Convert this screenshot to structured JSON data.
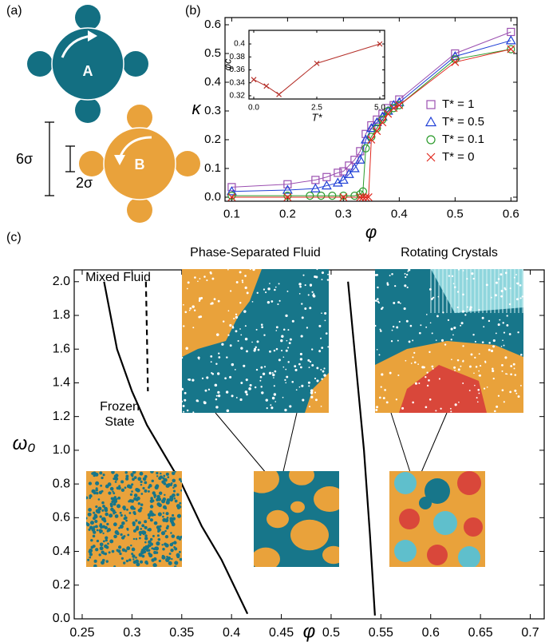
{
  "panel_labels": [
    "(a)",
    "(b)",
    "(c)"
  ],
  "diagram": {
    "particles": [
      "A",
      "B"
    ],
    "scale_bars": [
      "6σ",
      "2σ"
    ]
  },
  "chart_data": [
    {
      "type": "line",
      "xlabel": "φ",
      "ylabel": "κ",
      "xlim": [
        0.088,
        0.611
      ],
      "ylim": [
        -0.014,
        0.625
      ],
      "xticks": [
        0.1,
        0.2,
        0.3,
        0.4,
        0.5,
        0.6
      ],
      "yticks": [
        {
          "value": 0,
          "label": "0.0"
        },
        0.1,
        0.2,
        0.3,
        0.4,
        0.5,
        0.6
      ],
      "legend": "right",
      "series": [
        {
          "name": "T* = 1",
          "color": "#9b4fb0",
          "marker": "square",
          "x": [
            0.1,
            0.2,
            0.25,
            0.27,
            0.29,
            0.3,
            0.31,
            0.32,
            0.33,
            0.34,
            0.35,
            0.36,
            0.37,
            0.38,
            0.39,
            0.4,
            0.5,
            0.6
          ],
          "values": [
            0.035,
            0.045,
            0.06,
            0.07,
            0.085,
            0.09,
            0.11,
            0.13,
            0.16,
            0.22,
            0.25,
            0.27,
            0.29,
            0.31,
            0.32,
            0.34,
            0.5,
            0.575
          ]
        },
        {
          "name": "T* = 0.5",
          "color": "#1f3fd6",
          "marker": "triangle",
          "x": [
            0.1,
            0.2,
            0.25,
            0.27,
            0.29,
            0.3,
            0.31,
            0.32,
            0.33,
            0.34,
            0.35,
            0.36,
            0.37,
            0.38,
            0.39,
            0.4,
            0.5,
            0.6
          ],
          "values": [
            0.02,
            0.025,
            0.03,
            0.04,
            0.05,
            0.06,
            0.08,
            0.1,
            0.13,
            0.2,
            0.24,
            0.26,
            0.28,
            0.3,
            0.32,
            0.33,
            0.49,
            0.545
          ]
        },
        {
          "name": "T* = 0.1",
          "color": "#2a9a2a",
          "marker": "circle",
          "x": [
            0.1,
            0.2,
            0.24,
            0.26,
            0.28,
            0.3,
            0.32,
            0.33,
            0.335,
            0.34,
            0.35,
            0.36,
            0.37,
            0.38,
            0.39,
            0.4,
            0.5,
            0.6
          ],
          "values": [
            0.005,
            0.005,
            0.005,
            0.005,
            0.005,
            0.005,
            0.005,
            0.01,
            0.02,
            0.17,
            0.21,
            0.24,
            0.27,
            0.3,
            0.31,
            0.32,
            0.48,
            0.515
          ]
        },
        {
          "name": "T* = 0",
          "color": "#e0281e",
          "marker": "x",
          "x": [
            0.1,
            0.2,
            0.3,
            0.33,
            0.335,
            0.34,
            0.345,
            0.35,
            0.36,
            0.37,
            0.38,
            0.39,
            0.4,
            0.5,
            0.6
          ],
          "values": [
            0,
            0,
            0,
            0,
            0,
            0,
            0,
            0.2,
            0.23,
            0.26,
            0.29,
            0.31,
            0.32,
            0.47,
            0.515
          ]
        }
      ]
    },
    {
      "type": "line",
      "xlabel": "T*",
      "ylabel": "φc",
      "xlim": [
        -0.19,
        5.19
      ],
      "ylim": [
        0.315,
        0.421
      ],
      "xticks": [
        {
          "value": 0,
          "label": "0.0"
        },
        2.5,
        {
          "value": 5,
          "label": "5.0"
        }
      ],
      "yticks": [
        0.32,
        0.34,
        0.36,
        0.38,
        0.4
      ],
      "series": [
        {
          "color": "#b5302a",
          "marker": "x",
          "x": [
            0,
            0.5,
            1,
            2.5,
            5
          ],
          "values": [
            0.345,
            0.335,
            0.322,
            0.37,
            0.4
          ]
        }
      ]
    },
    {
      "type": "line",
      "xlabel": "φ",
      "ylabel": "ω₀",
      "xlim": [
        0.242,
        0.714
      ],
      "ylim": [
        0,
        2.07
      ],
      "xticks": [
        0.25,
        0.3,
        0.35,
        0.4,
        0.45,
        0.5,
        0.55,
        0.6,
        0.65,
        0.7
      ],
      "yticks": [
        {
          "value": 0,
          "label": "0.0"
        },
        0.2,
        0.4,
        0.6,
        0.8,
        {
          "value": 1,
          "label": "1.0"
        },
        1.2,
        1.4,
        1.6,
        1.8,
        {
          "value": 2,
          "label": "2.0"
        }
      ],
      "series": [
        {
          "color": "#000000",
          "style": "solid",
          "x": [
            0.272,
            0.285,
            0.3,
            0.315,
            0.33,
            0.35,
            0.37,
            0.39,
            0.416
          ],
          "values": [
            2.0,
            1.6,
            1.35,
            1.15,
            1.0,
            0.8,
            0.55,
            0.35,
            0.03
          ]
        },
        {
          "color": "#000000",
          "style": "dashed",
          "x": [
            0.314,
            0.315,
            0.316
          ],
          "values": [
            2.0,
            1.7,
            1.35
          ]
        },
        {
          "color": "#000000",
          "style": "solid",
          "x": [
            0.517,
            0.525,
            0.533,
            0.539,
            0.544
          ],
          "values": [
            2.0,
            1.5,
            1.0,
            0.5,
            0.02
          ]
        }
      ],
      "annotations": [
        "Mixed Fluid",
        "Phase-Separated Fluid",
        "Rotating Crystals",
        "Frozen State"
      ]
    }
  ]
}
